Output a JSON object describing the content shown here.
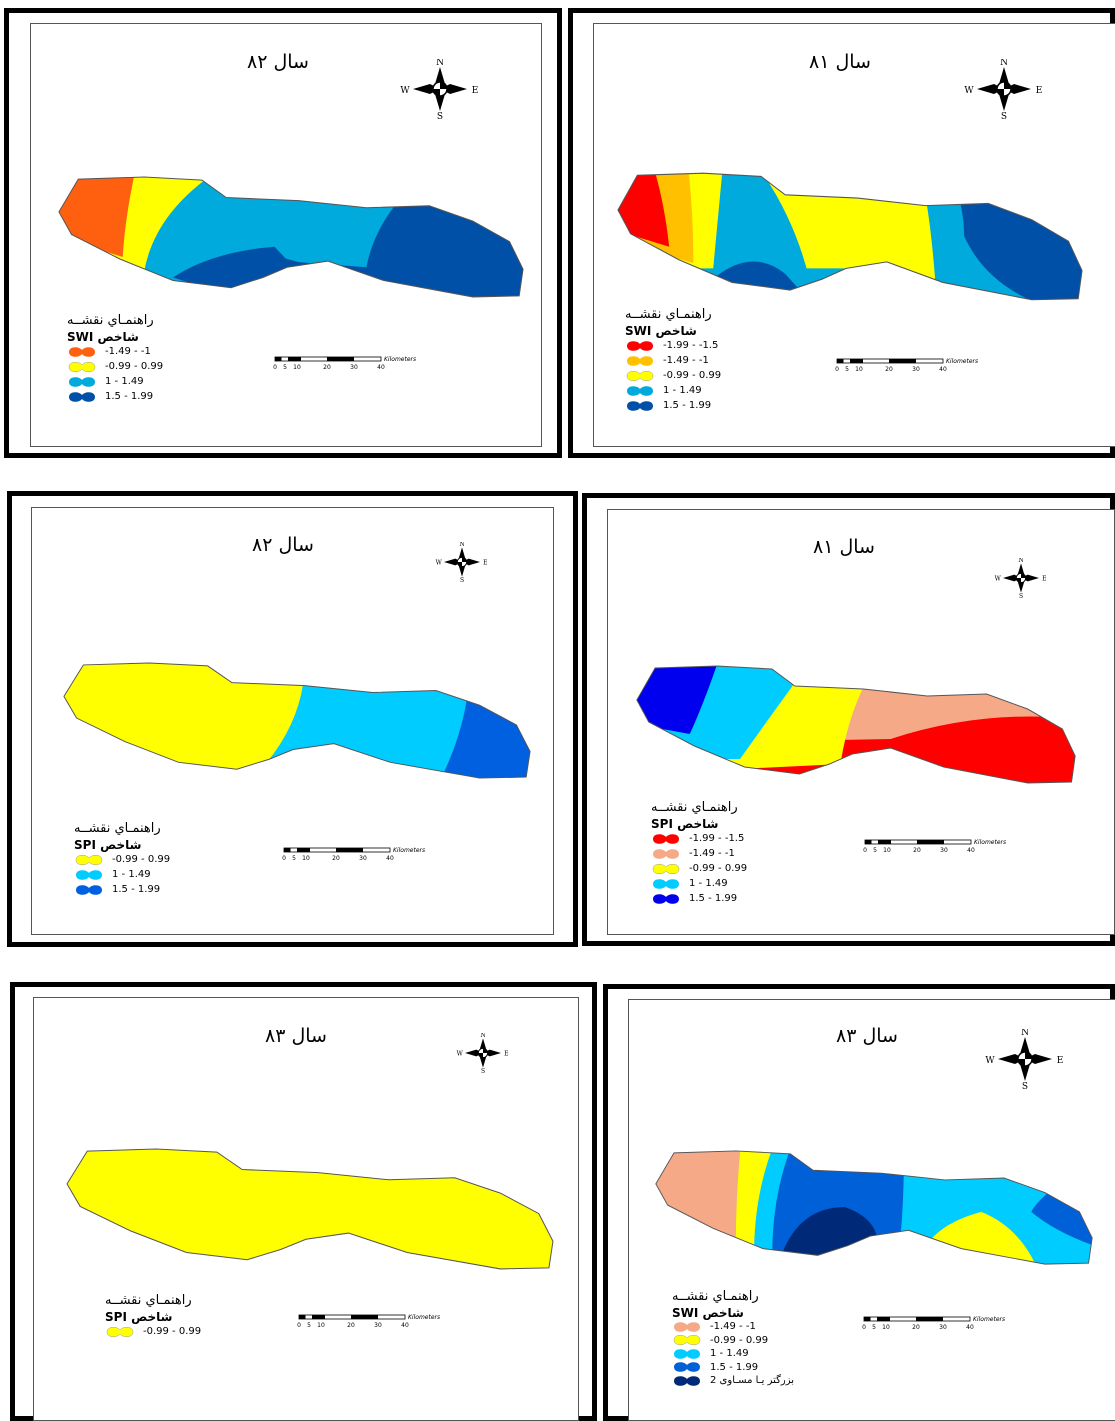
{
  "panels": [
    {
      "title": "سال ٨٢",
      "compass": {
        "n": "N",
        "s": "S",
        "e": "E",
        "w": "W"
      },
      "legend_title": "راهنمـاي نقشــه",
      "index_label": "شاخص SWI",
      "classes": [
        {
          "label": "-1.49 - -1",
          "color": "#ff6010"
        },
        {
          "label": "-0.99 - 0.99",
          "color": "#ffff00"
        },
        {
          "label": "1 - 1.49",
          "color": "#00aadd"
        },
        {
          "label": "1.5 - 1.99",
          "color": "#0050a8"
        }
      ],
      "scale": {
        "ticks": [
          "0",
          "5",
          "10",
          "20",
          "30",
          "40"
        ],
        "unit": "Kilometers"
      }
    },
    {
      "title": "سال ٨١",
      "compass": {
        "n": "N",
        "s": "S",
        "e": "E",
        "w": "W"
      },
      "legend_title": "راهنمـاي نقشــه",
      "index_label": "شاخص SWI",
      "classes": [
        {
          "label": "-1.99 - -1.5",
          "color": "#ff0000"
        },
        {
          "label": "-1.49 - -1",
          "color": "#ffc000"
        },
        {
          "label": "-0.99 - 0.99",
          "color": "#ffff00"
        },
        {
          "label": "1 - 1.49",
          "color": "#00aadd"
        },
        {
          "label": "1.5 - 1.99",
          "color": "#0050a8"
        }
      ],
      "scale": {
        "ticks": [
          "0",
          "5",
          "10",
          "20",
          "30",
          "40"
        ],
        "unit": "Kilometers"
      }
    },
    {
      "title": "سال ٨٢",
      "compass": {
        "n": "N",
        "s": "S",
        "e": "E",
        "w": "W"
      },
      "legend_title": "راهنمـاي نقشــه",
      "index_label": "شاخص SPI",
      "classes": [
        {
          "label": "-0.99 - 0.99",
          "color": "#ffff00"
        },
        {
          "label": "1 - 1.49",
          "color": "#00ccff"
        },
        {
          "label": "1.5 - 1.99",
          "color": "#0060e0"
        }
      ],
      "scale": {
        "ticks": [
          "0",
          "5",
          "10",
          "20",
          "30",
          "40"
        ],
        "unit": "Kilometers"
      }
    },
    {
      "title": "سال ٨١",
      "compass": {
        "n": "N",
        "s": "S",
        "e": "E",
        "w": "W"
      },
      "legend_title": "راهنمـاي نقشــه",
      "index_label": "شاخص SPI",
      "classes": [
        {
          "label": "-1.99 - -1.5",
          "color": "#ff0000"
        },
        {
          "label": "-1.49 - -1",
          "color": "#f5a987"
        },
        {
          "label": "-0.99 - 0.99",
          "color": "#ffff00"
        },
        {
          "label": "1 - 1.49",
          "color": "#00ccff"
        },
        {
          "label": "1.5 - 1.99",
          "color": "#0000ee"
        }
      ],
      "scale": {
        "ticks": [
          "0",
          "5",
          "10",
          "20",
          "30",
          "40"
        ],
        "unit": "Kilometers"
      }
    },
    {
      "title": "سال ٨٣",
      "compass": {
        "n": "N",
        "s": "S",
        "e": "E",
        "w": "W"
      },
      "legend_title": "راهنمـاي نقشــه",
      "index_label": "شاخص SPI",
      "classes": [
        {
          "label": "-0.99 - 0.99",
          "color": "#ffff00"
        }
      ],
      "scale": {
        "ticks": [
          "0",
          "5",
          "10",
          "20",
          "30",
          "40"
        ],
        "unit": "Kilometers"
      }
    },
    {
      "title": "سال ٨٣",
      "compass": {
        "n": "N",
        "s": "S",
        "e": "E",
        "w": "W"
      },
      "legend_title": "راهنمـاي نقشــه",
      "index_label": "شاخص SWI",
      "classes": [
        {
          "label": "-1.49 - -1",
          "color": "#f5a987"
        },
        {
          "label": "-0.99 - 0.99",
          "color": "#ffff00"
        },
        {
          "label": "1 - 1.49",
          "color": "#00ccff"
        },
        {
          "label": "1.5 - 1.99",
          "color": "#0060d8"
        },
        {
          "label": "بزرگتر یـا مسـاوی 2",
          "color": "#002a78"
        }
      ],
      "scale": {
        "ticks": [
          "0",
          "5",
          "10",
          "20",
          "30",
          "40"
        ],
        "unit": "Kilometers"
      }
    }
  ]
}
